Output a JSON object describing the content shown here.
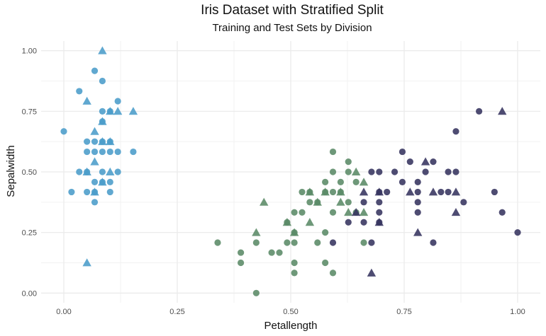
{
  "chart_data": {
    "type": "scatter",
    "title": "Iris Dataset with Stratified Split",
    "subtitle": "Training and Test Sets by Division",
    "xlabel": "Petallength",
    "ylabel": "Sepalwidth",
    "xlim": [
      -0.05,
      1.05
    ],
    "ylim": [
      -0.04,
      1.04
    ],
    "x_ticks": [
      "0.00",
      "0.25",
      "0.50",
      "0.75",
      "1.00"
    ],
    "y_ticks": [
      "0.00",
      "0.25",
      "0.50",
      "0.75",
      "1.00"
    ],
    "grid": true,
    "legend": "none",
    "marker_shapes": {
      "circle": "training set",
      "triangle": "test set"
    },
    "series": [
      {
        "color": "#4a9cc9",
        "points": [
          {
            "x": 0.0,
            "y": 0.667,
            "shape": "circle"
          },
          {
            "x": 0.017,
            "y": 0.417,
            "shape": "circle"
          },
          {
            "x": 0.034,
            "y": 0.833,
            "shape": "circle"
          },
          {
            "x": 0.034,
            "y": 0.5,
            "shape": "circle"
          },
          {
            "x": 0.051,
            "y": 0.625,
            "shape": "circle"
          },
          {
            "x": 0.051,
            "y": 0.583,
            "shape": "circle"
          },
          {
            "x": 0.051,
            "y": 0.5,
            "shape": "circle"
          },
          {
            "x": 0.051,
            "y": 0.417,
            "shape": "circle"
          },
          {
            "x": 0.068,
            "y": 0.917,
            "shape": "circle"
          },
          {
            "x": 0.068,
            "y": 0.625,
            "shape": "circle"
          },
          {
            "x": 0.068,
            "y": 0.583,
            "shape": "circle"
          },
          {
            "x": 0.068,
            "y": 0.458,
            "shape": "circle"
          },
          {
            "x": 0.068,
            "y": 0.417,
            "shape": "circle"
          },
          {
            "x": 0.068,
            "y": 0.375,
            "shape": "circle"
          },
          {
            "x": 0.085,
            "y": 0.875,
            "shape": "circle"
          },
          {
            "x": 0.085,
            "y": 0.75,
            "shape": "circle"
          },
          {
            "x": 0.085,
            "y": 0.708,
            "shape": "circle"
          },
          {
            "x": 0.085,
            "y": 0.625,
            "shape": "circle"
          },
          {
            "x": 0.085,
            "y": 0.583,
            "shape": "circle"
          },
          {
            "x": 0.085,
            "y": 0.5,
            "shape": "circle"
          },
          {
            "x": 0.085,
            "y": 0.458,
            "shape": "circle"
          },
          {
            "x": 0.102,
            "y": 0.75,
            "shape": "circle"
          },
          {
            "x": 0.102,
            "y": 0.625,
            "shape": "circle"
          },
          {
            "x": 0.102,
            "y": 0.583,
            "shape": "circle"
          },
          {
            "x": 0.102,
            "y": 0.458,
            "shape": "circle"
          },
          {
            "x": 0.102,
            "y": 0.417,
            "shape": "circle"
          },
          {
            "x": 0.119,
            "y": 0.792,
            "shape": "circle"
          },
          {
            "x": 0.119,
            "y": 0.583,
            "shape": "circle"
          },
          {
            "x": 0.119,
            "y": 0.5,
            "shape": "circle"
          },
          {
            "x": 0.153,
            "y": 0.583,
            "shape": "circle"
          },
          {
            "x": 0.085,
            "y": 1.0,
            "shape": "triangle"
          },
          {
            "x": 0.051,
            "y": 0.792,
            "shape": "triangle"
          },
          {
            "x": 0.102,
            "y": 0.75,
            "shape": "triangle"
          },
          {
            "x": 0.119,
            "y": 0.75,
            "shape": "triangle"
          },
          {
            "x": 0.153,
            "y": 0.75,
            "shape": "triangle"
          },
          {
            "x": 0.068,
            "y": 0.667,
            "shape": "triangle"
          },
          {
            "x": 0.085,
            "y": 0.708,
            "shape": "triangle"
          },
          {
            "x": 0.085,
            "y": 0.625,
            "shape": "triangle"
          },
          {
            "x": 0.102,
            "y": 0.625,
            "shape": "triangle"
          },
          {
            "x": 0.068,
            "y": 0.542,
            "shape": "triangle"
          },
          {
            "x": 0.051,
            "y": 0.5,
            "shape": "triangle"
          },
          {
            "x": 0.102,
            "y": 0.5,
            "shape": "triangle"
          },
          {
            "x": 0.085,
            "y": 0.458,
            "shape": "triangle"
          },
          {
            "x": 0.068,
            "y": 0.417,
            "shape": "triangle"
          },
          {
            "x": 0.051,
            "y": 0.125,
            "shape": "triangle"
          }
        ]
      },
      {
        "color": "#5a8a66",
        "points": [
          {
            "x": 0.339,
            "y": 0.208,
            "shape": "circle"
          },
          {
            "x": 0.39,
            "y": 0.167,
            "shape": "circle"
          },
          {
            "x": 0.39,
            "y": 0.125,
            "shape": "circle"
          },
          {
            "x": 0.424,
            "y": 0.208,
            "shape": "circle"
          },
          {
            "x": 0.458,
            "y": 0.167,
            "shape": "circle"
          },
          {
            "x": 0.475,
            "y": 0.167,
            "shape": "circle"
          },
          {
            "x": 0.424,
            "y": 0.0,
            "shape": "circle"
          },
          {
            "x": 0.492,
            "y": 0.208,
            "shape": "circle"
          },
          {
            "x": 0.492,
            "y": 0.292,
            "shape": "circle"
          },
          {
            "x": 0.508,
            "y": 0.333,
            "shape": "circle"
          },
          {
            "x": 0.508,
            "y": 0.25,
            "shape": "circle"
          },
          {
            "x": 0.508,
            "y": 0.125,
            "shape": "circle"
          },
          {
            "x": 0.508,
            "y": 0.083,
            "shape": "circle"
          },
          {
            "x": 0.508,
            "y": 0.208,
            "shape": "circle"
          },
          {
            "x": 0.525,
            "y": 0.417,
            "shape": "circle"
          },
          {
            "x": 0.525,
            "y": 0.333,
            "shape": "circle"
          },
          {
            "x": 0.542,
            "y": 0.417,
            "shape": "circle"
          },
          {
            "x": 0.542,
            "y": 0.375,
            "shape": "circle"
          },
          {
            "x": 0.559,
            "y": 0.375,
            "shape": "circle"
          },
          {
            "x": 0.559,
            "y": 0.208,
            "shape": "circle"
          },
          {
            "x": 0.576,
            "y": 0.458,
            "shape": "circle"
          },
          {
            "x": 0.576,
            "y": 0.417,
            "shape": "circle"
          },
          {
            "x": 0.576,
            "y": 0.125,
            "shape": "circle"
          },
          {
            "x": 0.576,
            "y": 0.25,
            "shape": "circle"
          },
          {
            "x": 0.593,
            "y": 0.583,
            "shape": "circle"
          },
          {
            "x": 0.593,
            "y": 0.5,
            "shape": "circle"
          },
          {
            "x": 0.593,
            "y": 0.417,
            "shape": "circle"
          },
          {
            "x": 0.593,
            "y": 0.333,
            "shape": "circle"
          },
          {
            "x": 0.593,
            "y": 0.083,
            "shape": "circle"
          },
          {
            "x": 0.61,
            "y": 0.458,
            "shape": "circle"
          },
          {
            "x": 0.61,
            "y": 0.417,
            "shape": "circle"
          },
          {
            "x": 0.627,
            "y": 0.542,
            "shape": "circle"
          },
          {
            "x": 0.627,
            "y": 0.5,
            "shape": "circle"
          },
          {
            "x": 0.627,
            "y": 0.375,
            "shape": "circle"
          },
          {
            "x": 0.644,
            "y": 0.458,
            "shape": "circle"
          },
          {
            "x": 0.644,
            "y": 0.333,
            "shape": "circle"
          },
          {
            "x": 0.661,
            "y": 0.208,
            "shape": "circle"
          },
          {
            "x": 0.441,
            "y": 0.375,
            "shape": "triangle"
          },
          {
            "x": 0.424,
            "y": 0.25,
            "shape": "triangle"
          },
          {
            "x": 0.492,
            "y": 0.292,
            "shape": "triangle"
          },
          {
            "x": 0.508,
            "y": 0.25,
            "shape": "triangle"
          },
          {
            "x": 0.542,
            "y": 0.292,
            "shape": "triangle"
          },
          {
            "x": 0.542,
            "y": 0.417,
            "shape": "triangle"
          },
          {
            "x": 0.559,
            "y": 0.375,
            "shape": "triangle"
          },
          {
            "x": 0.576,
            "y": 0.417,
            "shape": "triangle"
          },
          {
            "x": 0.61,
            "y": 0.417,
            "shape": "triangle"
          },
          {
            "x": 0.61,
            "y": 0.375,
            "shape": "triangle"
          },
          {
            "x": 0.627,
            "y": 0.333,
            "shape": "triangle"
          },
          {
            "x": 0.644,
            "y": 0.5,
            "shape": "triangle"
          },
          {
            "x": 0.661,
            "y": 0.458,
            "shape": "triangle"
          },
          {
            "x": 0.661,
            "y": 0.333,
            "shape": "triangle"
          }
        ]
      },
      {
        "color": "#36335e",
        "points": [
          {
            "x": 0.593,
            "y": 0.208,
            "shape": "circle"
          },
          {
            "x": 0.627,
            "y": 0.292,
            "shape": "circle"
          },
          {
            "x": 0.661,
            "y": 0.292,
            "shape": "circle"
          },
          {
            "x": 0.661,
            "y": 0.375,
            "shape": "circle"
          },
          {
            "x": 0.678,
            "y": 0.5,
            "shape": "circle"
          },
          {
            "x": 0.678,
            "y": 0.208,
            "shape": "circle"
          },
          {
            "x": 0.695,
            "y": 0.5,
            "shape": "circle"
          },
          {
            "x": 0.695,
            "y": 0.417,
            "shape": "circle"
          },
          {
            "x": 0.695,
            "y": 0.375,
            "shape": "circle"
          },
          {
            "x": 0.695,
            "y": 0.333,
            "shape": "circle"
          },
          {
            "x": 0.695,
            "y": 0.292,
            "shape": "circle"
          },
          {
            "x": 0.712,
            "y": 0.417,
            "shape": "circle"
          },
          {
            "x": 0.729,
            "y": 0.5,
            "shape": "circle"
          },
          {
            "x": 0.746,
            "y": 0.583,
            "shape": "circle"
          },
          {
            "x": 0.746,
            "y": 0.458,
            "shape": "circle"
          },
          {
            "x": 0.763,
            "y": 0.542,
            "shape": "circle"
          },
          {
            "x": 0.78,
            "y": 0.458,
            "shape": "circle"
          },
          {
            "x": 0.78,
            "y": 0.417,
            "shape": "circle"
          },
          {
            "x": 0.78,
            "y": 0.375,
            "shape": "circle"
          },
          {
            "x": 0.78,
            "y": 0.333,
            "shape": "circle"
          },
          {
            "x": 0.797,
            "y": 0.5,
            "shape": "circle"
          },
          {
            "x": 0.814,
            "y": 0.542,
            "shape": "circle"
          },
          {
            "x": 0.814,
            "y": 0.208,
            "shape": "circle"
          },
          {
            "x": 0.831,
            "y": 0.417,
            "shape": "circle"
          },
          {
            "x": 0.847,
            "y": 0.5,
            "shape": "circle"
          },
          {
            "x": 0.847,
            "y": 0.417,
            "shape": "circle"
          },
          {
            "x": 0.864,
            "y": 0.667,
            "shape": "circle"
          },
          {
            "x": 0.864,
            "y": 0.5,
            "shape": "circle"
          },
          {
            "x": 0.881,
            "y": 0.375,
            "shape": "circle"
          },
          {
            "x": 0.915,
            "y": 0.75,
            "shape": "circle"
          },
          {
            "x": 0.949,
            "y": 0.417,
            "shape": "circle"
          },
          {
            "x": 0.966,
            "y": 0.333,
            "shape": "circle"
          },
          {
            "x": 1.0,
            "y": 0.25,
            "shape": "circle"
          },
          {
            "x": 0.644,
            "y": 0.333,
            "shape": "triangle"
          },
          {
            "x": 0.661,
            "y": 0.417,
            "shape": "triangle"
          },
          {
            "x": 0.678,
            "y": 0.083,
            "shape": "triangle"
          },
          {
            "x": 0.695,
            "y": 0.417,
            "shape": "triangle"
          },
          {
            "x": 0.695,
            "y": 0.292,
            "shape": "triangle"
          },
          {
            "x": 0.763,
            "y": 0.417,
            "shape": "triangle"
          },
          {
            "x": 0.78,
            "y": 0.25,
            "shape": "triangle"
          },
          {
            "x": 0.797,
            "y": 0.542,
            "shape": "triangle"
          },
          {
            "x": 0.814,
            "y": 0.417,
            "shape": "triangle"
          },
          {
            "x": 0.864,
            "y": 0.417,
            "shape": "triangle"
          },
          {
            "x": 0.864,
            "y": 0.333,
            "shape": "triangle"
          },
          {
            "x": 0.966,
            "y": 0.75,
            "shape": "triangle"
          }
        ]
      }
    ]
  }
}
